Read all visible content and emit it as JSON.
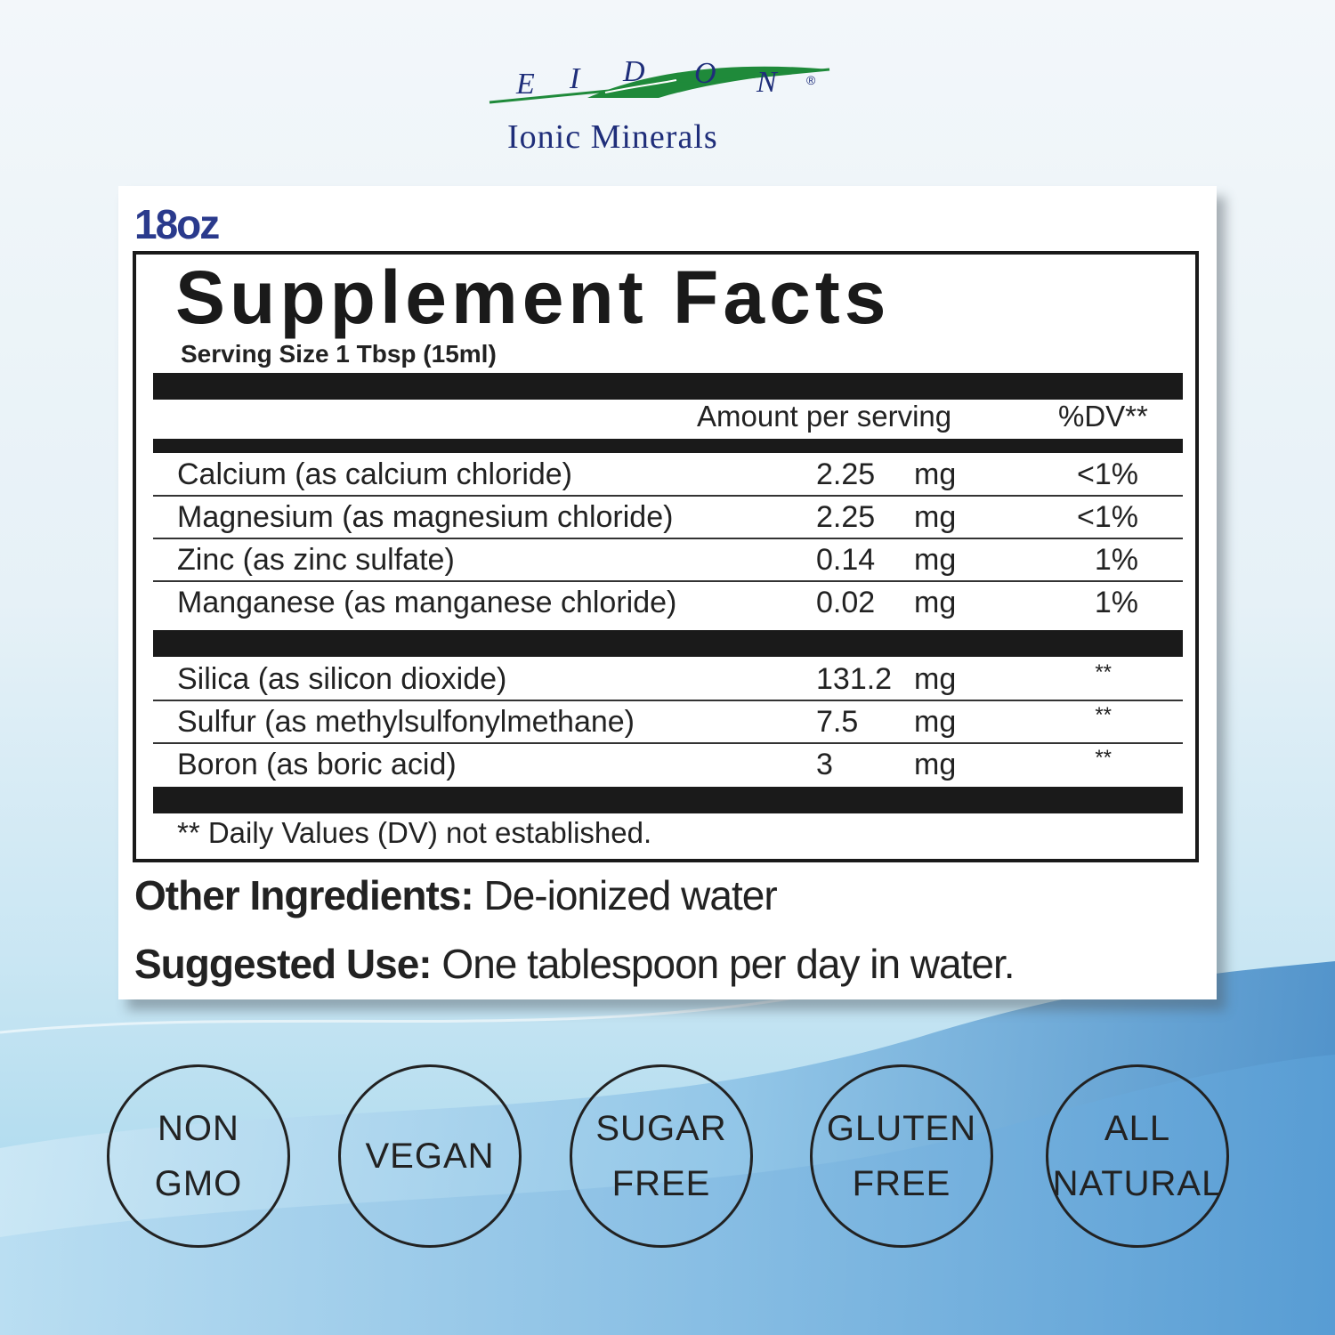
{
  "brand": {
    "letters": [
      "E",
      "I",
      "D",
      "O",
      "N"
    ],
    "registered": "®",
    "tagline": "Ionic Minerals",
    "colors": {
      "navy": "#1f2e7a",
      "leaf_green": "#1f8a3a"
    }
  },
  "label": {
    "size": "18oz",
    "title": "Supplement Facts",
    "serving_size": "Serving Size 1 Tbsp (15ml)",
    "header_amount": "Amount per serving",
    "header_dv": "%DV**",
    "group1": [
      {
        "name": "Calcium (as calcium chloride)",
        "amount": "2.25",
        "unit": "mg",
        "dv": "<1%"
      },
      {
        "name": "Magnesium (as magnesium chloride)",
        "amount": "2.25",
        "unit": "mg",
        "dv": "<1%"
      },
      {
        "name": "Zinc (as zinc sulfate)",
        "amount": "0.14",
        "unit": "mg",
        "dv": "1%"
      },
      {
        "name": "Manganese (as manganese chloride)",
        "amount": "0.02",
        "unit": "mg",
        "dv": "1%"
      }
    ],
    "group2": [
      {
        "name": "Silica (as silicon dioxide)",
        "amount": "131.2",
        "unit": "mg",
        "dv": "**"
      },
      {
        "name": "Sulfur (as methylsulfonylmethane)",
        "amount": "7.5",
        "unit": "mg",
        "dv": "**"
      },
      {
        "name": "Boron (as boric acid)",
        "amount": "3",
        "unit": "mg",
        "dv": "**"
      }
    ],
    "footnote": "** Daily Values (DV) not established.",
    "other_ingredients_label": "Other Ingredients:",
    "other_ingredients_value": " De-ionized water",
    "suggested_use_label": "Suggested Use:",
    "suggested_use_value": " One tablespoon per day in water."
  },
  "badges": [
    {
      "text": "NON\nGMO"
    },
    {
      "text": "VEGAN"
    },
    {
      "text": "SUGAR\nFREE"
    },
    {
      "text": "GLUTEN\nFREE"
    },
    {
      "text": "ALL\nNATURAL"
    }
  ],
  "colors": {
    "background_top": "#f3f7fa",
    "background_wave": "#4f95cc",
    "text": "#222222",
    "size_text": "#2a3a8c"
  }
}
